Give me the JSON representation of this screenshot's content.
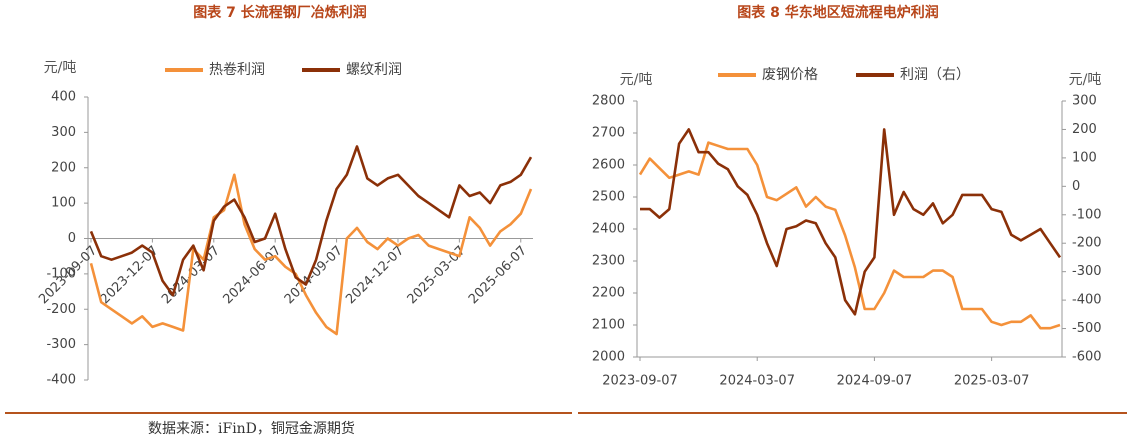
{
  "chart_data": [
    {
      "type": "line",
      "title": "图表 7 长流程钢厂冶炼利润",
      "y_unit": "元/吨",
      "categories": [
        "2023-09-07",
        null,
        null,
        null,
        null,
        null,
        "2023-12-07",
        null,
        null,
        null,
        null,
        null,
        "2024-03-07",
        null,
        null,
        null,
        null,
        null,
        "2024-06-07",
        null,
        null,
        null,
        null,
        null,
        "2024-09-07",
        null,
        null,
        null,
        null,
        null,
        "2024-12-07",
        null,
        null,
        null,
        null,
        null,
        "2025-03-07",
        null,
        null,
        null,
        null,
        null,
        "2025-06-07",
        null
      ],
      "series": [
        {
          "name": "热卷利润",
          "color": "#f4913a",
          "values": [
            -70,
            -180,
            -200,
            -220,
            -240,
            -220,
            -250,
            -240,
            -250,
            -260,
            -30,
            -60,
            60,
            80,
            180,
            40,
            -30,
            -60,
            -50,
            -80,
            -100,
            -160,
            -210,
            -250,
            -270,
            0,
            30,
            -10,
            -30,
            0,
            -20,
            0,
            10,
            -20,
            -30,
            -40,
            -50,
            60,
            30,
            -20,
            20,
            40,
            70,
            140
          ]
        },
        {
          "name": "螺纹利润",
          "color": "#8b3008",
          "values": [
            20,
            -50,
            -60,
            -50,
            -40,
            -20,
            -40,
            -120,
            -160,
            -60,
            -20,
            -90,
            50,
            90,
            110,
            60,
            -10,
            0,
            70,
            -30,
            -110,
            -130,
            -60,
            50,
            140,
            180,
            260,
            170,
            150,
            170,
            180,
            150,
            120,
            100,
            80,
            60,
            150,
            120,
            130,
            100,
            150,
            160,
            180,
            230
          ]
        }
      ],
      "ylim": [
        -400,
        400
      ],
      "yticks": [
        -400,
        -300,
        -200,
        -100,
        0,
        100,
        200,
        300,
        400
      ]
    },
    {
      "type": "line",
      "title": "图表 8 华东地区短流程电炉利润",
      "y_unit": "元/吨",
      "y2_unit": "元/吨",
      "categories": [
        "2023-09-07",
        null,
        null,
        null,
        null,
        null,
        null,
        null,
        null,
        null,
        null,
        null,
        "2024-03-07",
        null,
        null,
        null,
        null,
        null,
        null,
        null,
        null,
        null,
        null,
        null,
        "2024-09-07",
        null,
        null,
        null,
        null,
        null,
        null,
        null,
        null,
        null,
        null,
        null,
        "2025-03-07",
        null,
        null,
        null,
        null,
        null,
        null,
        null
      ],
      "series": [
        {
          "name": "废钢价格",
          "color": "#f4913a",
          "values": [
            2570,
            2620,
            2590,
            2560,
            2570,
            2580,
            2570,
            2670,
            2660,
            2650,
            2650,
            2650,
            2600,
            2500,
            2490,
            2510,
            2530,
            2470,
            2500,
            2470,
            2460,
            2380,
            2280,
            2150,
            2150,
            2200,
            2270,
            2250,
            2250,
            2250,
            2270,
            2270,
            2250,
            2150,
            2150,
            2150,
            2110,
            2100,
            2110,
            2110,
            2130,
            2090,
            2090,
            2100
          ]
        },
        {
          "name": "利润（右）",
          "color": "#8b3008",
          "axis": "y2",
          "values": [
            -80,
            -80,
            -110,
            -80,
            150,
            200,
            120,
            120,
            80,
            60,
            0,
            -30,
            -100,
            -200,
            -280,
            -150,
            -140,
            -120,
            -130,
            -200,
            -250,
            -400,
            -450,
            -300,
            -250,
            200,
            -100,
            -20,
            -80,
            -100,
            -60,
            -130,
            -100,
            -30,
            -30,
            -30,
            -80,
            -90,
            -170,
            -190,
            -170,
            -150,
            -200,
            -250
          ]
        }
      ],
      "ylim": [
        2000,
        2800
      ],
      "yticks": [
        2000,
        2100,
        2200,
        2300,
        2400,
        2500,
        2600,
        2700,
        2800
      ],
      "y2lim": [
        -600,
        300
      ],
      "y2ticks": [
        -600,
        -500,
        -400,
        -300,
        -200,
        -100,
        0,
        100,
        200,
        300
      ]
    }
  ],
  "source": "数据来源：iFinD，铜冠金源期货"
}
